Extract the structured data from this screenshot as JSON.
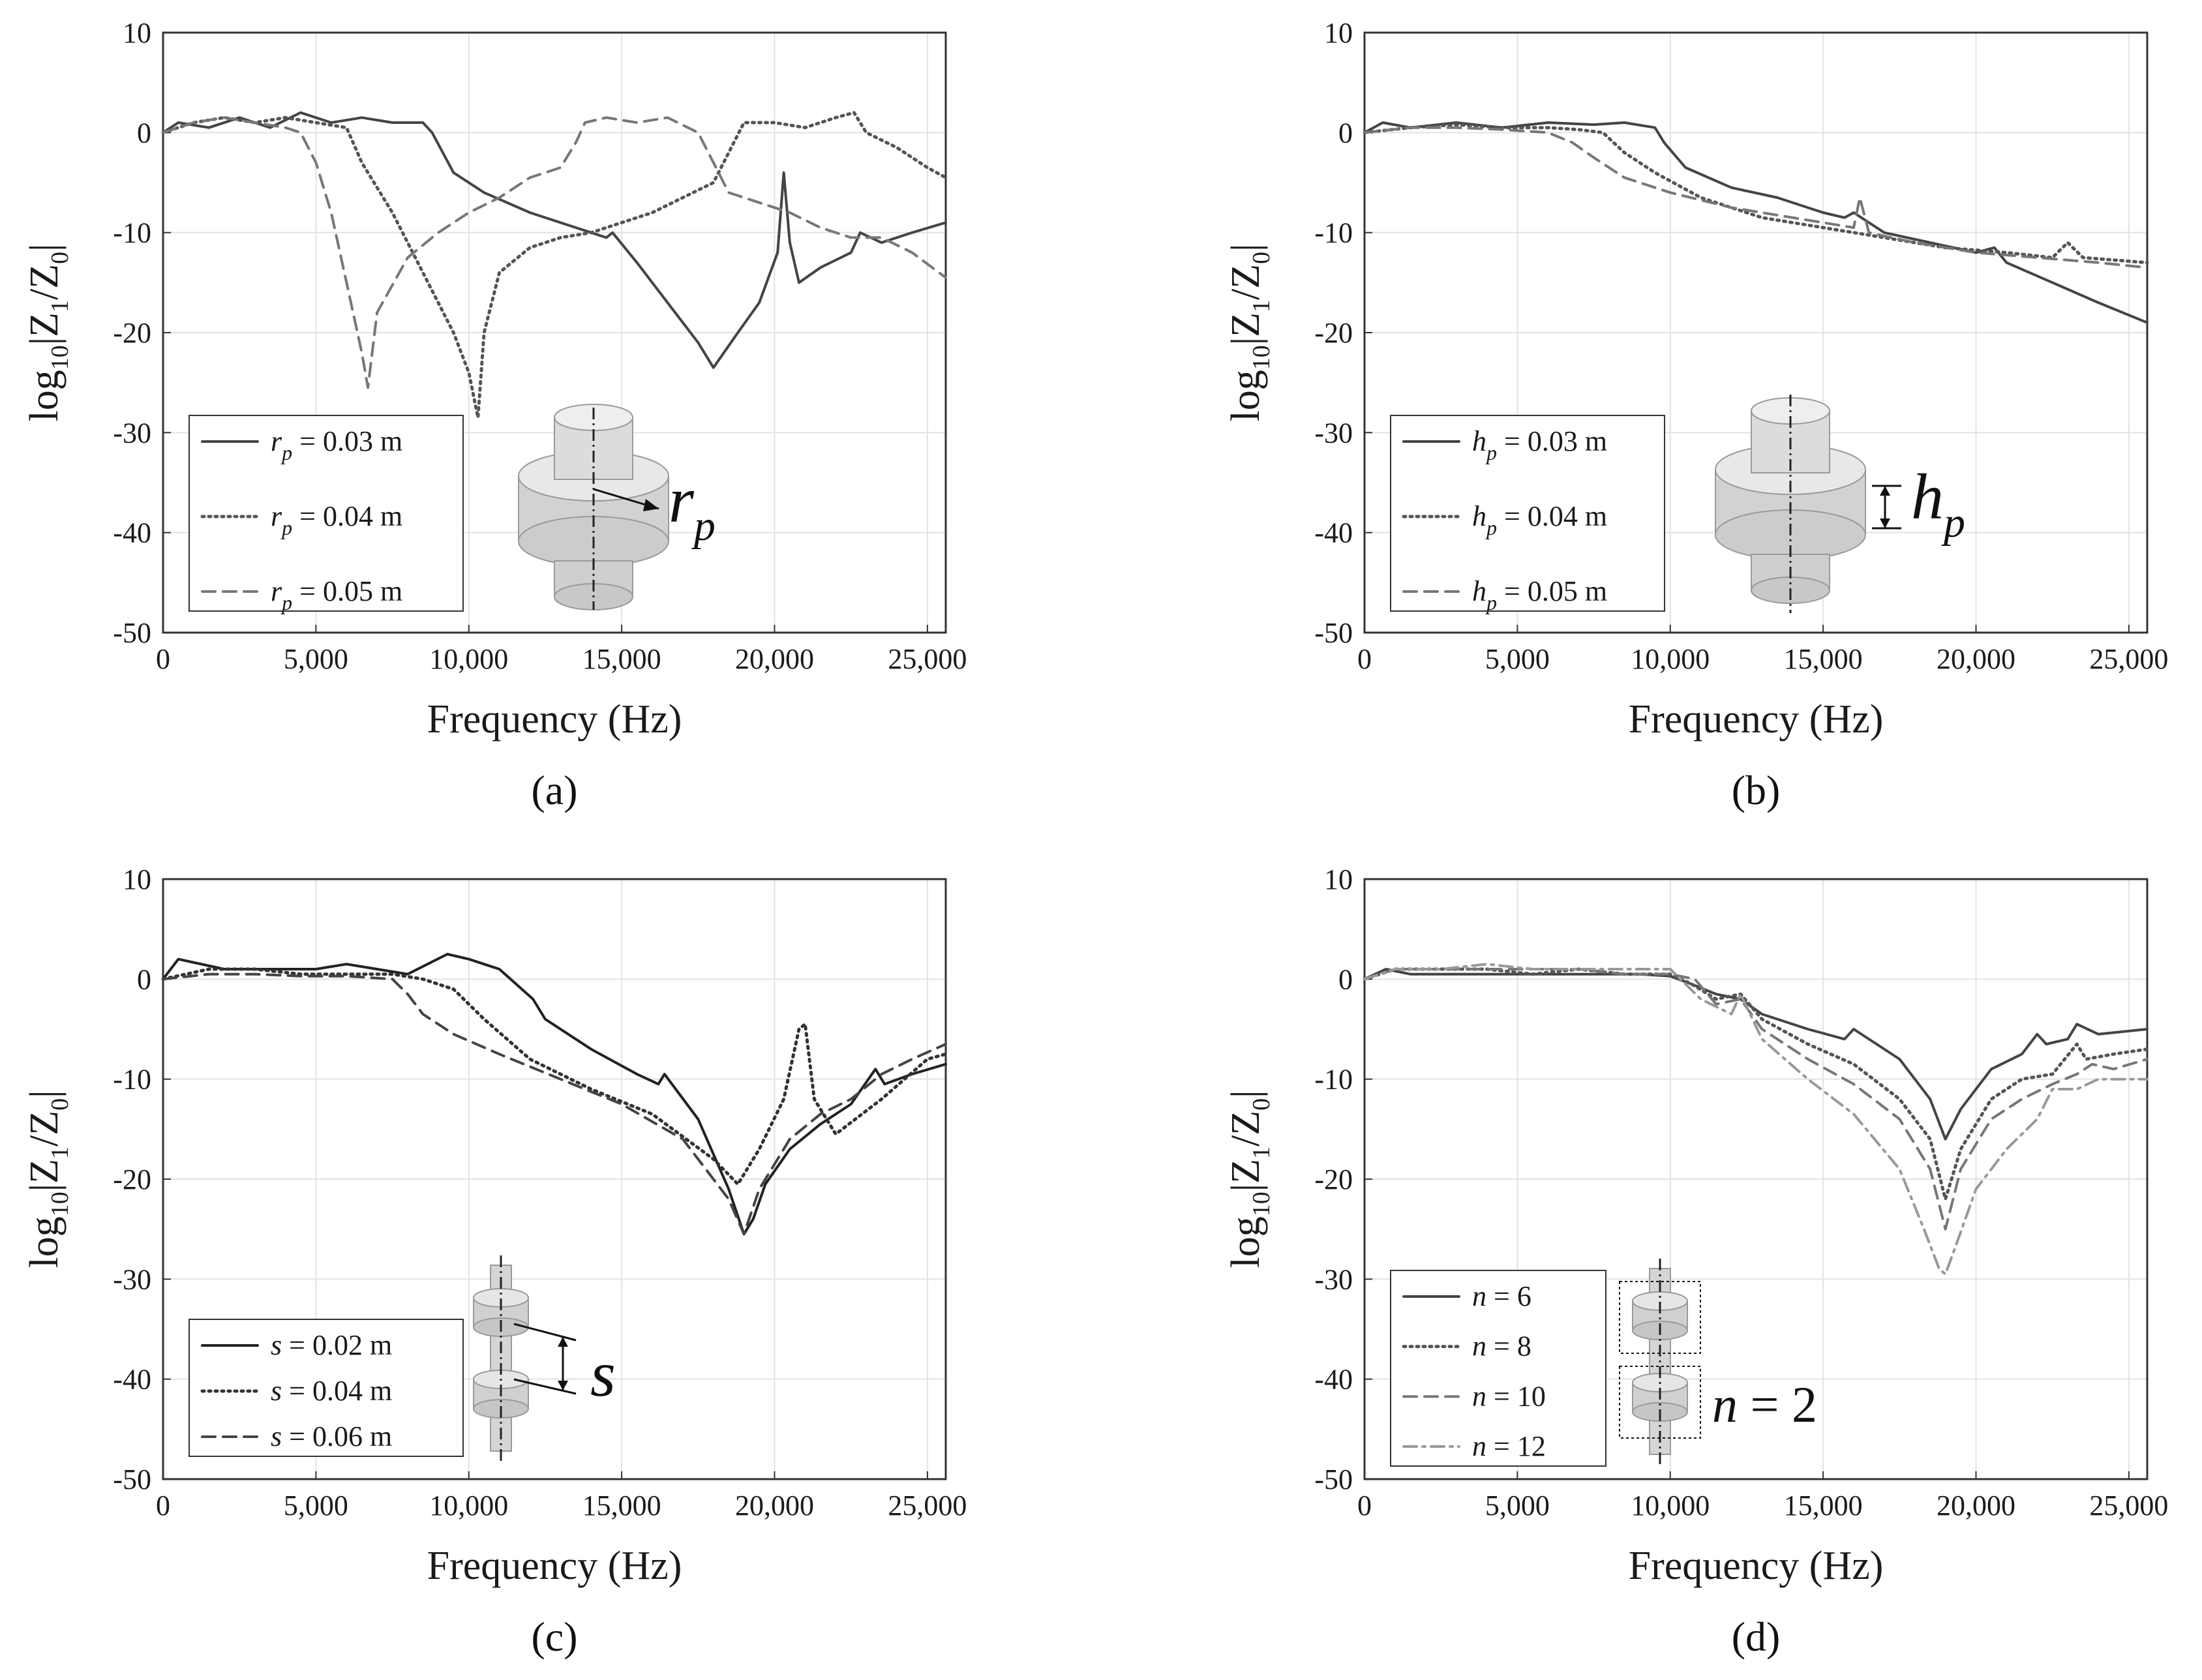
{
  "chart_data": [
    {
      "panel": "a",
      "caption": "(a)",
      "type": "line",
      "xlabel": "Frequency (Hz)",
      "ylabel": "log10|Z1/Z0|",
      "xlim": [
        0,
        25600
      ],
      "ylim": [
        -50,
        10
      ],
      "xticks": [
        0,
        5000,
        10000,
        15000,
        20000,
        25000
      ],
      "xtick_labels": [
        "0",
        "5,000",
        "10,000",
        "15,000",
        "20,000",
        "25,000"
      ],
      "yticks": [
        10,
        0,
        -10,
        -20,
        -30,
        -40,
        -50
      ],
      "ytick_labels": [
        "10",
        "0",
        "-10",
        "-20",
        "-30",
        "-40",
        "-50"
      ],
      "grid": true,
      "legend_position": "lower-left",
      "diagram_label": "r_p",
      "series": [
        {
          "name": "r_p = 0.03 m",
          "legend_var": "r",
          "legend_sub": "p",
          "legend_rest": " = 0.03 m",
          "style": "solid",
          "color": "#444444",
          "x": [
            0,
            500,
            1500,
            2500,
            3500,
            4500,
            5500,
            6500,
            7500,
            8500,
            8800,
            9500,
            10500,
            12000,
            13500,
            14500,
            14700,
            15500,
            16500,
            17500,
            18000,
            18800,
            19500,
            20100,
            20300,
            20500,
            20800,
            21500,
            22500,
            22800,
            23500,
            24500,
            25600
          ],
          "y": [
            0,
            1,
            0.5,
            1.5,
            0.5,
            2,
            1,
            1.5,
            1,
            1,
            0,
            -4,
            -6,
            -8,
            -9.5,
            -10.5,
            -10,
            -13,
            -17,
            -21,
            -23.5,
            -20,
            -17,
            -12,
            -4,
            -11,
            -15,
            -13.5,
            -12,
            -10,
            -11,
            -10,
            -9
          ]
        },
        {
          "name": "r_p = 0.04 m",
          "legend_var": "r",
          "legend_sub": "p",
          "legend_rest": " = 0.04 m",
          "style": "dotted",
          "color": "#555555",
          "x": [
            0,
            1000,
            2000,
            3000,
            4000,
            5000,
            6000,
            6500,
            7500,
            8500,
            9500,
            10000,
            10300,
            10500,
            11000,
            12000,
            13000,
            14000,
            16000,
            18000,
            18500,
            19000,
            20000,
            21000,
            22000,
            22600,
            23000,
            24000,
            25000,
            25600
          ],
          "y": [
            0,
            1,
            1.5,
            1,
            1.5,
            1,
            0.5,
            -3,
            -8,
            -14,
            -20,
            -24,
            -28.5,
            -20,
            -14,
            -11.5,
            -10.5,
            -10,
            -8,
            -5,
            -2,
            1,
            1,
            0.5,
            1.5,
            2,
            0,
            -1.5,
            -3.5,
            -4.5
          ]
        },
        {
          "name": "r_p = 0.05 m",
          "legend_var": "r",
          "legend_sub": "p",
          "legend_rest": " = 0.05 m",
          "style": "dashed",
          "color": "#777777",
          "x": [
            0,
            1000,
            2000,
            3000,
            4000,
            4500,
            5000,
            5500,
            6000,
            6500,
            6700,
            7000,
            8000,
            9000,
            10000,
            11000,
            12000,
            13000,
            13500,
            13800,
            14500,
            15500,
            16500,
            17500,
            18000,
            18500,
            19500,
            20500,
            21500,
            22500,
            23500,
            24500,
            25600
          ],
          "y": [
            0,
            1,
            1.5,
            1,
            0.5,
            0,
            -3,
            -8,
            -15,
            -22,
            -25.5,
            -18,
            -12.5,
            -10,
            -8,
            -6.5,
            -4.5,
            -3.5,
            -1,
            1,
            1.5,
            1,
            1.5,
            0,
            -3,
            -6,
            -7,
            -8,
            -9.5,
            -10.5,
            -10.5,
            -12,
            -14.5
          ]
        }
      ]
    },
    {
      "panel": "b",
      "caption": "(b)",
      "type": "line",
      "xlabel": "Frequency (Hz)",
      "ylabel": "log10|Z1/Z0|",
      "xlim": [
        0,
        25600
      ],
      "ylim": [
        -50,
        10
      ],
      "xticks": [
        0,
        5000,
        10000,
        15000,
        20000,
        25000
      ],
      "xtick_labels": [
        "0",
        "5,000",
        "10,000",
        "15,000",
        "20,000",
        "25,000"
      ],
      "yticks": [
        10,
        0,
        -10,
        -20,
        -30,
        -40,
        -50
      ],
      "ytick_labels": [
        "10",
        "0",
        "-10",
        "-20",
        "-30",
        "-40",
        "-50"
      ],
      "grid": true,
      "legend_position": "lower-left",
      "diagram_label": "h_p",
      "series": [
        {
          "name": "h_p = 0.03 m",
          "legend_var": "h",
          "legend_sub": "p",
          "legend_rest": " = 0.03 m",
          "style": "solid",
          "color": "#444444",
          "x": [
            0,
            600,
            1500,
            3000,
            4500,
            6000,
            7500,
            8500,
            9500,
            9800,
            10500,
            12000,
            13500,
            15000,
            15700,
            16000,
            17000,
            18500,
            20000,
            20600,
            21000,
            22500,
            24000,
            25600
          ],
          "y": [
            0,
            1,
            0.5,
            1,
            0.5,
            1,
            0.8,
            1,
            0.5,
            -1,
            -3.5,
            -5.5,
            -6.5,
            -8,
            -8.5,
            -8,
            -10,
            -11,
            -12,
            -11.5,
            -13,
            -15,
            -17,
            -19
          ]
        },
        {
          "name": "h_p = 0.04 m",
          "legend_var": "h",
          "legend_sub": "p",
          "legend_rest": " = 0.04 m",
          "style": "dotted",
          "color": "#555555",
          "x": [
            0,
            1500,
            3000,
            4500,
            6000,
            7000,
            7800,
            8500,
            9500,
            11000,
            13000,
            15000,
            17000,
            19000,
            21000,
            22500,
            23000,
            23500,
            25600
          ],
          "y": [
            0,
            0.5,
            0.8,
            0.5,
            0.5,
            0.3,
            0,
            -2,
            -4,
            -6.5,
            -8.5,
            -9.5,
            -10.5,
            -11.5,
            -12,
            -12.5,
            -11,
            -12.5,
            -13
          ]
        },
        {
          "name": "h_p = 0.05 m",
          "legend_var": "h",
          "legend_sub": "p",
          "legend_rest": " = 0.05 m",
          "style": "dashed",
          "color": "#777777",
          "x": [
            0,
            1500,
            3000,
            4500,
            6000,
            6800,
            7500,
            8500,
            10000,
            12000,
            14000,
            16000,
            16200,
            16500,
            18000,
            20000,
            22000,
            24000,
            25600
          ],
          "y": [
            0,
            0.5,
            0.5,
            0.3,
            0,
            -1,
            -2.5,
            -4.5,
            -6,
            -7.5,
            -8.5,
            -9.5,
            -6.5,
            -10,
            -11,
            -12,
            -12.5,
            -13,
            -13.5
          ]
        }
      ]
    },
    {
      "panel": "c",
      "caption": "(c)",
      "type": "line",
      "xlabel": "Frequency (Hz)",
      "ylabel": "log10|Z1/Z0|",
      "xlim": [
        0,
        25600
      ],
      "ylim": [
        -50,
        10
      ],
      "xticks": [
        0,
        5000,
        10000,
        15000,
        20000,
        25000
      ],
      "xtick_labels": [
        "0",
        "5,000",
        "10,000",
        "15,000",
        "20,000",
        "25,000"
      ],
      "yticks": [
        10,
        0,
        -10,
        -20,
        -30,
        -40,
        -50
      ],
      "ytick_labels": [
        "10",
        "0",
        "-10",
        "-20",
        "-30",
        "-40",
        "-50"
      ],
      "grid": true,
      "legend_position": "lower-left",
      "diagram_label": "s",
      "series": [
        {
          "name": "s = 0.02 m",
          "legend_var": "s",
          "legend_sub": "",
          "legend_rest": " = 0.02 m",
          "style": "solid",
          "color": "#222222",
          "x": [
            0,
            500,
            2000,
            3500,
            5000,
            6000,
            7000,
            8000,
            9300,
            10000,
            11000,
            12100,
            12500,
            14000,
            15500,
            16200,
            16400,
            17500,
            18500,
            19000,
            19300,
            19700,
            20500,
            21500,
            22500,
            23300,
            23600,
            24500,
            25600
          ],
          "y": [
            0,
            2,
            1,
            1,
            1,
            1.5,
            1,
            0.5,
            2.5,
            2,
            1,
            -2,
            -4,
            -7,
            -9.5,
            -10.5,
            -9.5,
            -14,
            -21,
            -25.5,
            -24,
            -20.5,
            -17,
            -14.5,
            -12.5,
            -9,
            -10.5,
            -9.5,
            -8.5
          ]
        },
        {
          "name": "s = 0.04 m",
          "legend_var": "s",
          "legend_sub": "",
          "legend_rest": " = 0.04 m",
          "style": "dotted",
          "color": "#333333",
          "x": [
            0,
            1500,
            3000,
            4500,
            6000,
            7500,
            8500,
            9500,
            10500,
            12000,
            14000,
            16000,
            18000,
            18800,
            19500,
            20300,
            20800,
            21000,
            21300,
            22000,
            23500,
            25000,
            25600
          ],
          "y": [
            0,
            1,
            1,
            0.5,
            0.5,
            0.5,
            0,
            -1,
            -4,
            -8,
            -11,
            -13.5,
            -18,
            -20.5,
            -17,
            -12,
            -5,
            -4.5,
            -12,
            -15.5,
            -12,
            -8,
            -7.5
          ]
        },
        {
          "name": "s = 0.06 m",
          "legend_var": "s",
          "legend_sub": "",
          "legend_rest": " = 0.06 m",
          "style": "dashed",
          "color": "#444444",
          "x": [
            0,
            1500,
            3000,
            4500,
            6000,
            7500,
            8000,
            8500,
            9500,
            11000,
            13000,
            15000,
            17000,
            18500,
            19000,
            19500,
            20500,
            21500,
            22500,
            23500,
            24500,
            25600
          ],
          "y": [
            0,
            0.5,
            0.5,
            0.3,
            0.3,
            0,
            -1.5,
            -3.5,
            -5.5,
            -7.5,
            -10,
            -12.5,
            -16,
            -22,
            -25.5,
            -21,
            -16,
            -13.5,
            -12,
            -9.5,
            -8,
            -6.5
          ]
        }
      ]
    },
    {
      "panel": "d",
      "caption": "(d)",
      "type": "line",
      "xlabel": "Frequency (Hz)",
      "ylabel": "log10|Z1/Z0|",
      "xlim": [
        0,
        25600
      ],
      "ylim": [
        -50,
        10
      ],
      "xticks": [
        0,
        5000,
        10000,
        15000,
        20000,
        25000
      ],
      "xtick_labels": [
        "0",
        "5,000",
        "10,000",
        "15,000",
        "20,000",
        "25,000"
      ],
      "yticks": [
        10,
        0,
        -10,
        -20,
        -30,
        -40,
        -50
      ],
      "ytick_labels": [
        "10",
        "0",
        "-10",
        "-20",
        "-30",
        "-40",
        "-50"
      ],
      "grid": true,
      "legend_position": "lower-left",
      "diagram_label": "n = 2",
      "series": [
        {
          "name": "n = 6",
          "legend_var": "n",
          "legend_sub": "",
          "legend_rest": " = 6",
          "style": "solid",
          "color": "#444444",
          "x": [
            0,
            700,
            1500,
            3000,
            4500,
            6000,
            7500,
            9000,
            10000,
            10700,
            11500,
            12300,
            13000,
            14500,
            15700,
            16000,
            17500,
            18500,
            19000,
            19500,
            20500,
            21500,
            22000,
            22300,
            23000,
            23300,
            24000,
            25600
          ],
          "y": [
            0,
            1,
            0.5,
            0.5,
            0.5,
            0.5,
            0.5,
            0.5,
            0.3,
            -0.5,
            -1.5,
            -2,
            -3.5,
            -5,
            -6,
            -5,
            -8,
            -12,
            -16,
            -13,
            -9,
            -7.5,
            -5.5,
            -6.5,
            -6,
            -4.5,
            -5.5,
            -5
          ]
        },
        {
          "name": "n = 8",
          "legend_var": "n",
          "legend_sub": "",
          "legend_rest": " = 8",
          "style": "dotted",
          "color": "#555555",
          "x": [
            0,
            1000,
            2500,
            4000,
            5500,
            7000,
            8500,
            10000,
            10700,
            11500,
            12300,
            13000,
            14500,
            16000,
            17500,
            18500,
            19000,
            19500,
            20500,
            21500,
            22500,
            23300,
            23600,
            24500,
            25600
          ],
          "y": [
            0,
            1,
            1,
            1,
            0.5,
            1,
            0.5,
            0.5,
            -0.5,
            -2,
            -1.5,
            -4,
            -6.5,
            -8.5,
            -12,
            -16,
            -22,
            -17,
            -12,
            -10,
            -9.5,
            -6.5,
            -8,
            -7.5,
            -7
          ]
        },
        {
          "name": "n = 10",
          "legend_var": "n",
          "legend_sub": "",
          "legend_rest": " = 10",
          "style": "dashed",
          "color": "#777777",
          "x": [
            0,
            1000,
            2500,
            4000,
            5500,
            7000,
            8500,
            10000,
            10800,
            11500,
            12300,
            13000,
            14500,
            16000,
            17500,
            18500,
            19000,
            19500,
            20500,
            21500,
            22500,
            23300,
            23800,
            24500,
            25600
          ],
          "y": [
            0,
            1,
            1,
            1,
            1,
            1,
            0.5,
            0.5,
            0,
            -2.5,
            -2,
            -5,
            -8,
            -10.5,
            -14,
            -19,
            -25,
            -19,
            -14,
            -12,
            -10.5,
            -9.5,
            -8.5,
            -9,
            -8
          ]
        },
        {
          "name": "n = 12",
          "legend_var": "n",
          "legend_sub": "",
          "legend_rest": " = 12",
          "style": "dashdot",
          "color": "#999999",
          "x": [
            0,
            1000,
            2500,
            4000,
            5500,
            7000,
            8500,
            10000,
            11000,
            12000,
            12300,
            13000,
            14500,
            16000,
            17500,
            18300,
            18800,
            19000,
            19300,
            20000,
            21000,
            22000,
            22500,
            23300,
            24000,
            25600
          ],
          "y": [
            0,
            1,
            1,
            1.5,
            1,
            1,
            1,
            1,
            -2,
            -3.5,
            -1.5,
            -6,
            -10,
            -13.5,
            -19,
            -25,
            -29,
            -29.5,
            -27,
            -21,
            -17,
            -14,
            -11,
            -11,
            -10,
            -10
          ]
        }
      ]
    }
  ]
}
